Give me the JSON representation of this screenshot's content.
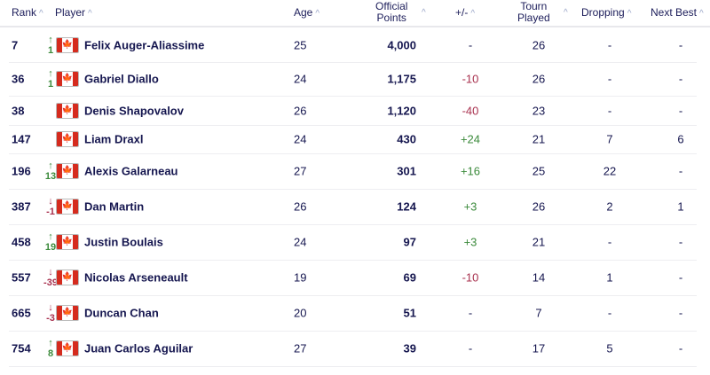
{
  "headers": {
    "rank": "Rank",
    "player": "Player",
    "age": "Age",
    "points_1": "Official",
    "points_2": "Points",
    "plusminus": "+/-",
    "tourn_1": "Tourn",
    "tourn_2": "Played",
    "dropping": "Dropping",
    "next_best": "Next Best"
  },
  "rows": [
    {
      "rank": "7",
      "move_dir": "up",
      "move": "1",
      "name": "Felix Auger-Aliassime",
      "age": "25",
      "points": "4,000",
      "pm": "-",
      "tourn": "26",
      "dropping": "-",
      "next_best": "-"
    },
    {
      "rank": "36",
      "move_dir": "up",
      "move": "1",
      "name": "Gabriel Diallo",
      "age": "24",
      "points": "1,175",
      "pm": "-10",
      "tourn": "26",
      "dropping": "-",
      "next_best": "-"
    },
    {
      "rank": "38",
      "move_dir": "",
      "move": "",
      "name": "Denis Shapovalov",
      "age": "26",
      "points": "1,120",
      "pm": "-40",
      "tourn": "23",
      "dropping": "-",
      "next_best": "-"
    },
    {
      "rank": "147",
      "move_dir": "",
      "move": "",
      "name": "Liam Draxl",
      "age": "24",
      "points": "430",
      "pm": "+24",
      "tourn": "21",
      "dropping": "7",
      "next_best": "6"
    },
    {
      "rank": "196",
      "move_dir": "up",
      "move": "13",
      "name": "Alexis Galarneau",
      "age": "27",
      "points": "301",
      "pm": "+16",
      "tourn": "25",
      "dropping": "22",
      "next_best": "-"
    },
    {
      "rank": "387",
      "move_dir": "down",
      "move": "-1",
      "name": "Dan Martin",
      "age": "26",
      "points": "124",
      "pm": "+3",
      "tourn": "26",
      "dropping": "2",
      "next_best": "1"
    },
    {
      "rank": "458",
      "move_dir": "up",
      "move": "19",
      "name": "Justin Boulais",
      "age": "24",
      "points": "97",
      "pm": "+3",
      "tourn": "21",
      "dropping": "-",
      "next_best": "-"
    },
    {
      "rank": "557",
      "move_dir": "down",
      "move": "-39",
      "name": "Nicolas Arseneault",
      "age": "19",
      "points": "69",
      "pm": "-10",
      "tourn": "14",
      "dropping": "1",
      "next_best": "-"
    },
    {
      "rank": "665",
      "move_dir": "down",
      "move": "-3",
      "name": "Duncan Chan",
      "age": "20",
      "points": "51",
      "pm": "-",
      "tourn": "7",
      "dropping": "-",
      "next_best": "-"
    },
    {
      "rank": "754",
      "move_dir": "up",
      "move": "8",
      "name": "Juan Carlos Aguilar",
      "age": "27",
      "points": "39",
      "pm": "-",
      "tourn": "17",
      "dropping": "5",
      "next_best": "-"
    }
  ]
}
